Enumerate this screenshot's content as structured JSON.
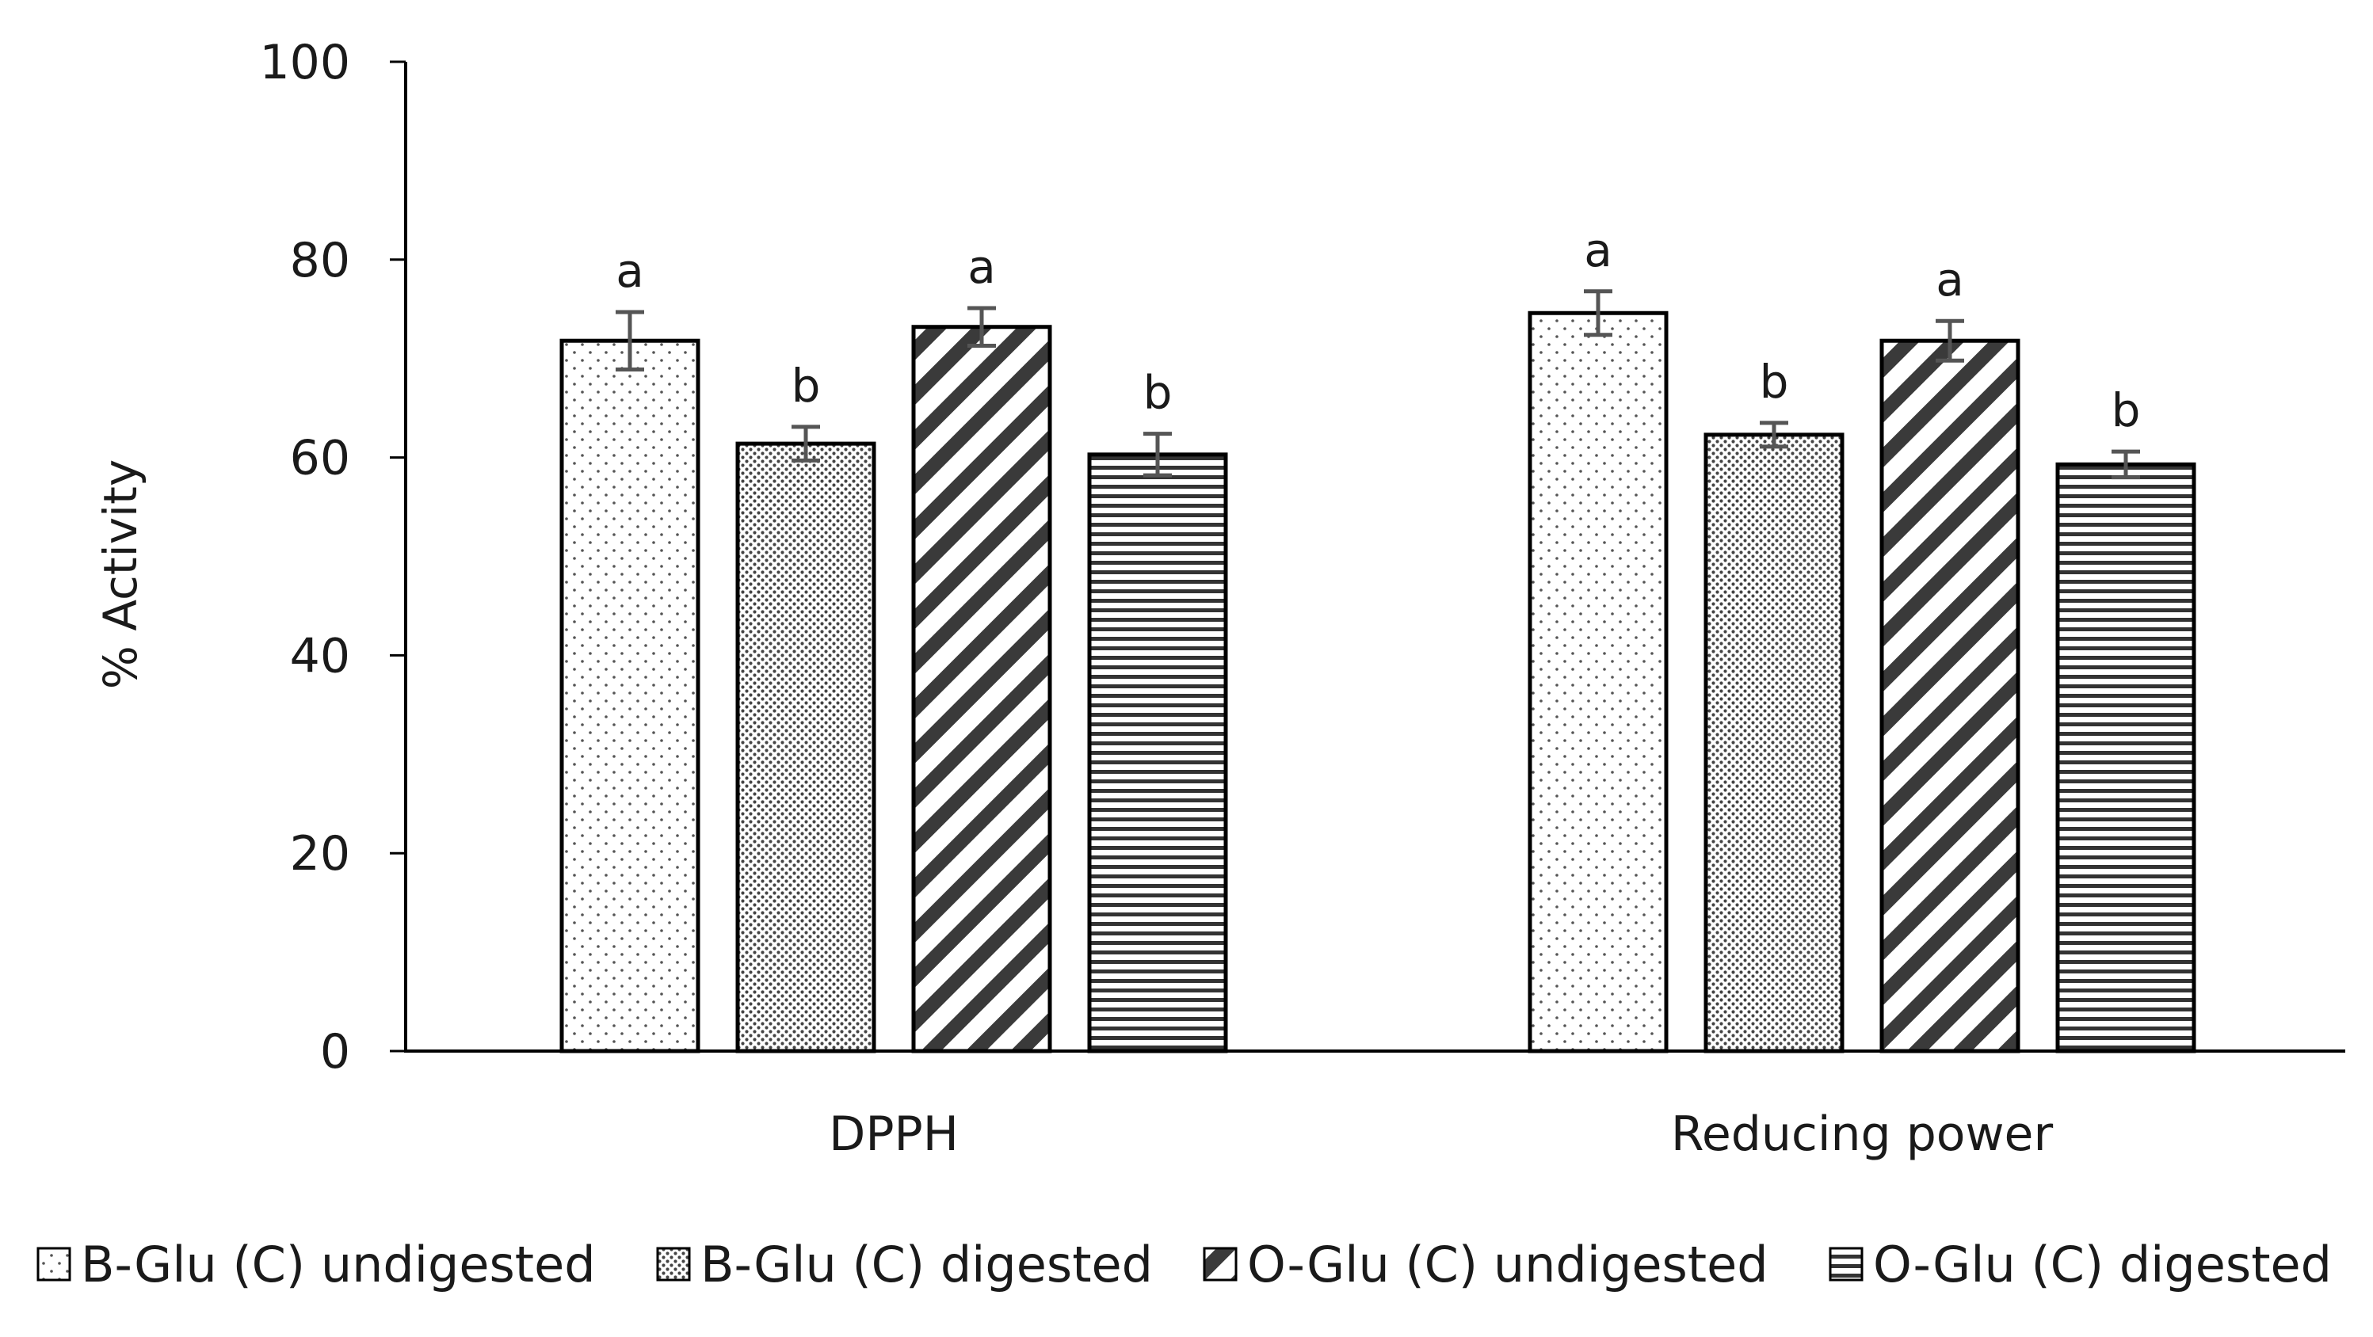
{
  "chart_data": {
    "type": "bar",
    "title": "",
    "xlabel": "",
    "ylabel": "% Activity",
    "ylim": [
      0,
      100
    ],
    "yticks": [
      0,
      20,
      40,
      60,
      80,
      100
    ],
    "ytick_labels": [
      "0",
      "20",
      "40",
      "60",
      "80",
      "100"
    ],
    "grid": false,
    "legend_position": "bottom",
    "categories": [
      "DPPH",
      "Reducing power"
    ],
    "series": [
      {
        "name": "B-Glu (C) undigested",
        "pattern": "sparse-dots",
        "values": [
          71.8,
          74.6
        ],
        "errors": [
          2.9,
          2.2
        ],
        "sig": [
          "a",
          "a"
        ]
      },
      {
        "name": "B-Glu (C) digested",
        "pattern": "dense-dots",
        "values": [
          61.4,
          62.3
        ],
        "errors": [
          1.7,
          1.2
        ],
        "sig": [
          "b",
          "b"
        ]
      },
      {
        "name": "O-Glu (C) undigested",
        "pattern": "diagonal-stripes",
        "values": [
          73.2,
          71.8
        ],
        "errors": [
          1.9,
          2.0
        ],
        "sig": [
          "a",
          "a"
        ]
      },
      {
        "name": "O-Glu (C) digested",
        "pattern": "horizontal-lines",
        "values": [
          60.3,
          59.3
        ],
        "errors": [
          2.1,
          1.3
        ],
        "sig": [
          "b",
          "b"
        ]
      }
    ],
    "colors": {
      "axis": "#000000",
      "bar_stroke": "#000000",
      "error_bar": "#555555",
      "pattern": "#333333"
    }
  }
}
